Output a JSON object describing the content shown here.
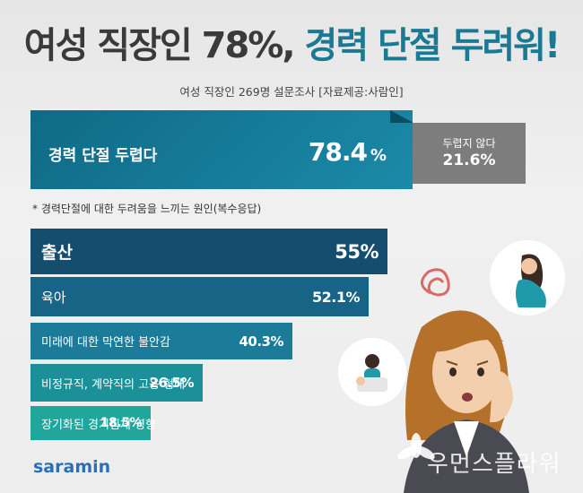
{
  "header": {
    "title_main": "여성 직장인 78%,",
    "title_highlight": "경력 단절 두려워!",
    "subtitle": "여성 직장인 269명 설문조사 [자료제공:사람인]"
  },
  "chart_data": [
    {
      "type": "bar",
      "categories": [
        "경력 단절 두렵다",
        "두렵지 않다"
      ],
      "values": [
        78.4,
        21.6
      ],
      "unit": "%"
    },
    {
      "type": "bar",
      "title": "* 경력단절에 대한 두려움을 느끼는 원인(복수응답)",
      "categories": [
        "출산",
        "육아",
        "미래에 대한 막연한 불안감",
        "비정규직, 계약직의 고용 형태",
        "장기화된 경기침체 영향"
      ],
      "values": [
        55,
        52.1,
        40.3,
        26.5,
        18.5
      ],
      "value_labels": [
        "55%",
        "52.1%",
        "40.3%",
        "26.5%",
        "18.5%"
      ],
      "colors": [
        "#144d6e",
        "#176486",
        "#1b7b98",
        "#1c9099",
        "#21a69c"
      ]
    }
  ],
  "main_bar": {
    "label": "경력 단절 두렵다",
    "value": "78.4",
    "pct": "%"
  },
  "minor_box": {
    "label": "두렵지 않다",
    "value": "21.6%"
  },
  "reason_title": "* 경력단절에 대한 두려움을 느끼는 원인(복수응답)",
  "logo": "saramin",
  "watermark": "우먼스플라워",
  "icons": [
    "worried-woman-icon",
    "pregnant-woman-icon",
    "mother-child-icon",
    "stress-squiggle-icon",
    "flower-icon"
  ]
}
